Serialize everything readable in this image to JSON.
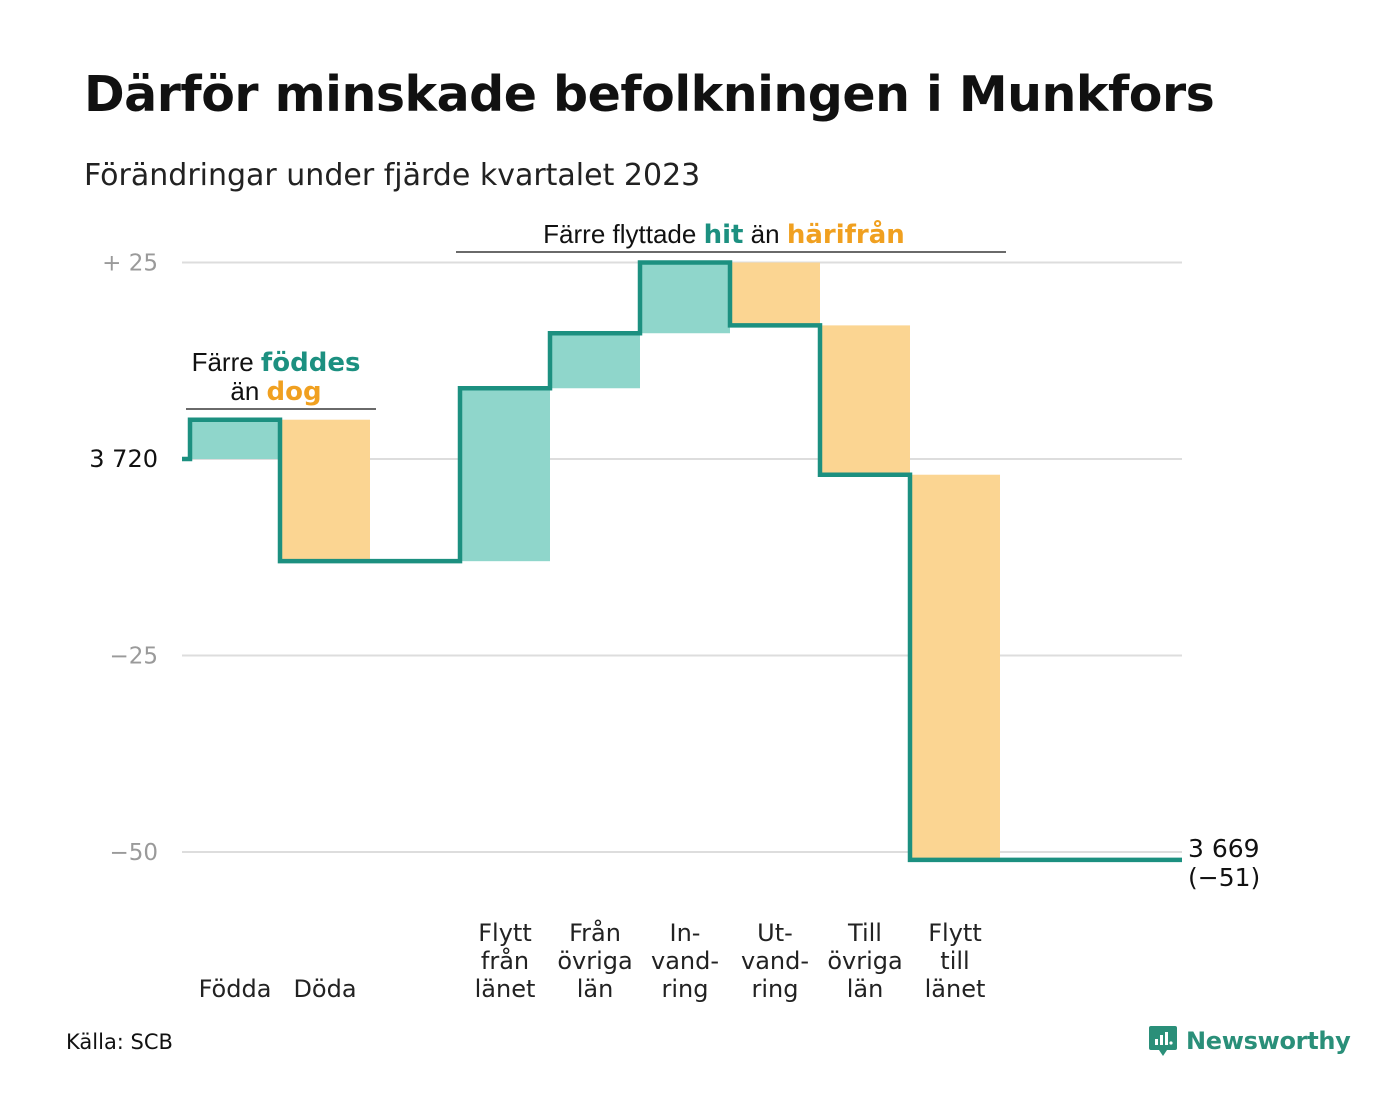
{
  "title": "Därför minskade befolkningen i Munkfors",
  "subtitle": "Förändringar under fjärde kvartalet 2023",
  "source": "Källa: SCB",
  "brand": "Newsworthy",
  "colors": {
    "line": "#1c9080",
    "positive": "#8fd6cb",
    "negative": "#fbd592",
    "teal_text": "#1c9080",
    "orange_text": "#f0a020",
    "grid": "#dddddd"
  },
  "annotations": {
    "births": {
      "line1_prefix": "Färre",
      "line1_highlight": "föddes",
      "line2_prefix": "än",
      "line2_highlight": "dog"
    },
    "moves": {
      "prefix": "Färre flyttade",
      "highlight1": "hit",
      "middle": "än",
      "highlight2": "härifrån"
    }
  },
  "chart_data": {
    "type": "waterfall",
    "title": "Därför minskade befolkningen i Munkfors",
    "subtitle": "Förändringar under fjärde kvartalet 2023",
    "start_value": 3720,
    "start_label": "3  720",
    "end_value": 3669,
    "end_label_line1": "3 669",
    "end_label_line2": "(−51)",
    "y_axis": {
      "range_relative": [
        -50,
        25
      ],
      "ticks": [
        {
          "value": 25,
          "label": "+  25"
        },
        {
          "value": 0,
          "label": "3  720"
        },
        {
          "value": -25,
          "label": "−25"
        },
        {
          "value": -50,
          "label": "−50"
        }
      ]
    },
    "grid": true,
    "steps": [
      {
        "category": [
          "Födda"
        ],
        "value": 5
      },
      {
        "category": [
          "Döda"
        ],
        "value": -18
      },
      {
        "category": [],
        "value": 0
      },
      {
        "category": [
          "Flytt",
          "från",
          "länet"
        ],
        "value": 22
      },
      {
        "category": [
          "Från",
          "övriga",
          "län"
        ],
        "value": 7
      },
      {
        "category": [
          "In-",
          "vand-",
          "ring"
        ],
        "value": 9
      },
      {
        "category": [
          "Ut-",
          "vand-",
          "ring"
        ],
        "value": -8
      },
      {
        "category": [
          "Till",
          "övriga",
          "län"
        ],
        "value": -19
      },
      {
        "category": [
          "Flytt",
          "till",
          "länet"
        ],
        "value": -49
      }
    ]
  }
}
